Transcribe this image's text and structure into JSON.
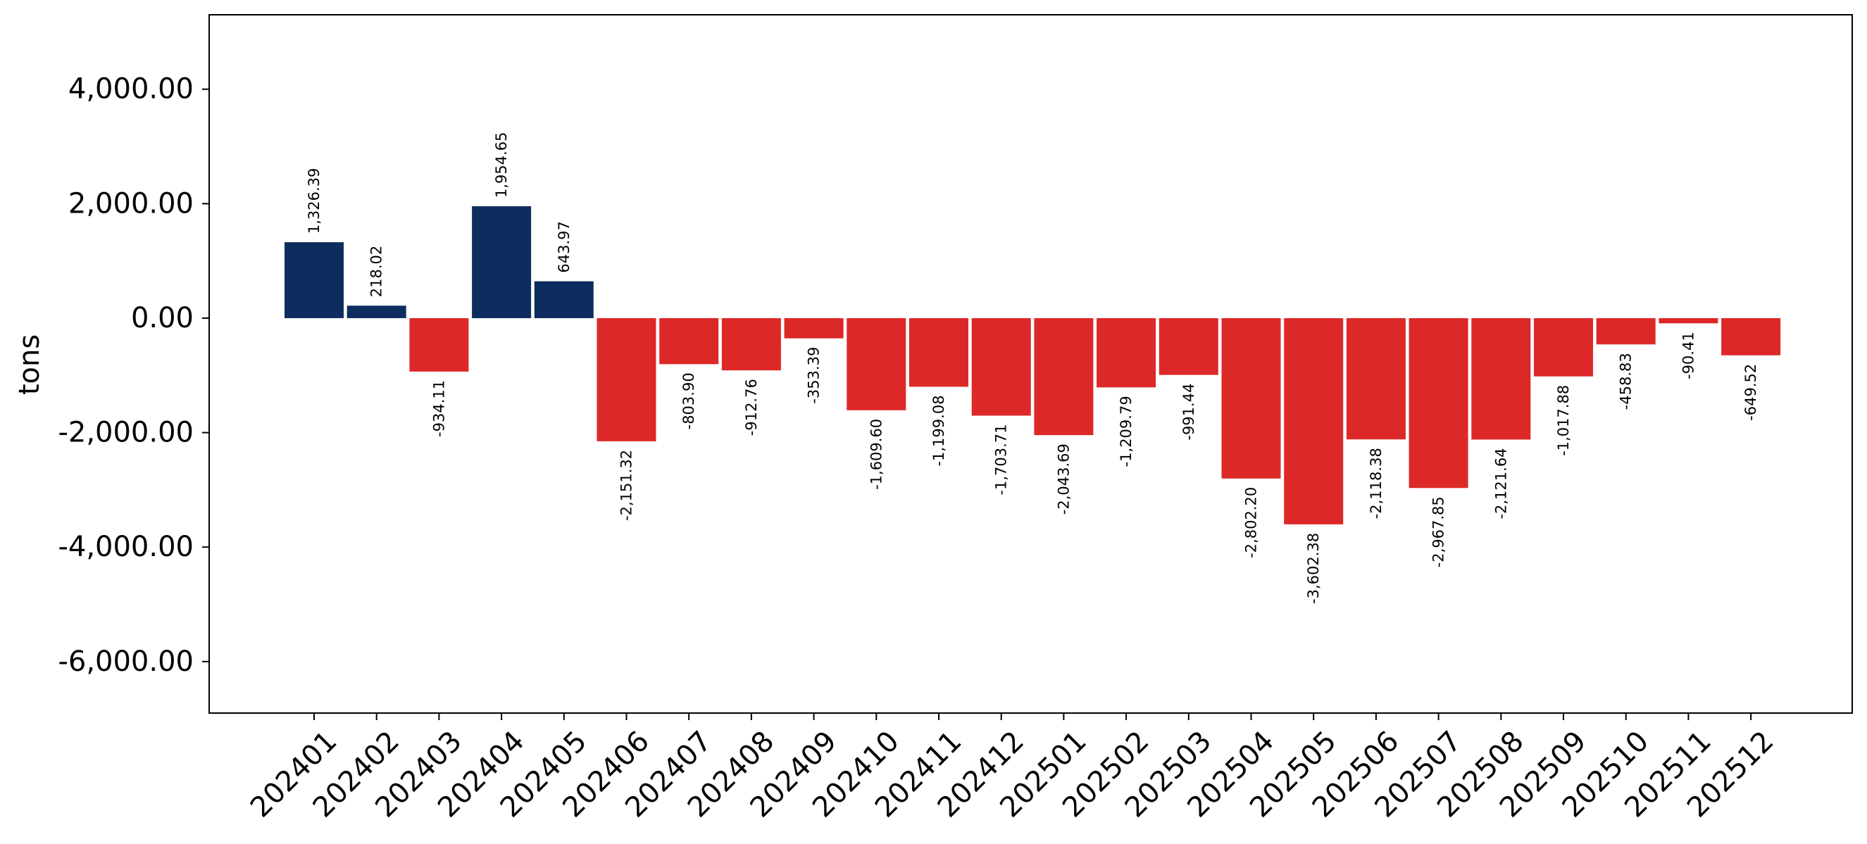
{
  "chart_data": {
    "type": "bar",
    "title": "",
    "xlabel": "",
    "ylabel": "tons",
    "ylim": [
      -6900,
      5300
    ],
    "yticks": [
      4000,
      2000,
      0,
      -2000,
      -4000,
      -6000
    ],
    "ytick_labels": [
      "4,000.00",
      "2,000.00",
      "0.00",
      "-2,000.00",
      "-4,000.00",
      "-6,000.00"
    ],
    "grid": false,
    "legend": "none",
    "colors": {
      "positive": "#0d2d5e",
      "negative": "#dd2828"
    },
    "categories": [
      "202401",
      "202402",
      "202403",
      "202404",
      "202405",
      "202406",
      "202407",
      "202408",
      "202409",
      "202410",
      "202411",
      "202412",
      "202501",
      "202502",
      "202503",
      "202504",
      "202505",
      "202506",
      "202507",
      "202508",
      "202509",
      "202510",
      "202511",
      "202512"
    ],
    "values": [
      1326.39,
      218.02,
      -934.11,
      1954.65,
      643.97,
      -2151.32,
      -803.9,
      -912.76,
      -353.39,
      -1609.6,
      -1199.08,
      -1703.71,
      -2043.69,
      -1209.79,
      -991.44,
      -2802.2,
      -3602.38,
      -2118.38,
      -2967.85,
      -2121.64,
      -1017.88,
      -458.83,
      -90.41,
      -649.52
    ],
    "value_labels": [
      "1,326.39",
      "218.02",
      "-934.11",
      "1,954.65",
      "643.97",
      "-2,151.32",
      "-803.90",
      "-912.76",
      "-353.39",
      "-1,609.60",
      "-1,199.08",
      "-1,703.71",
      "-2,043.69",
      "-1,209.79",
      "-991.44",
      "-2,802.20",
      "-3,602.38",
      "-2,118.38",
      "-2,967.85",
      "-2,121.64",
      "-1,017.88",
      "-458.83",
      "-90.41",
      "-649.52"
    ]
  }
}
